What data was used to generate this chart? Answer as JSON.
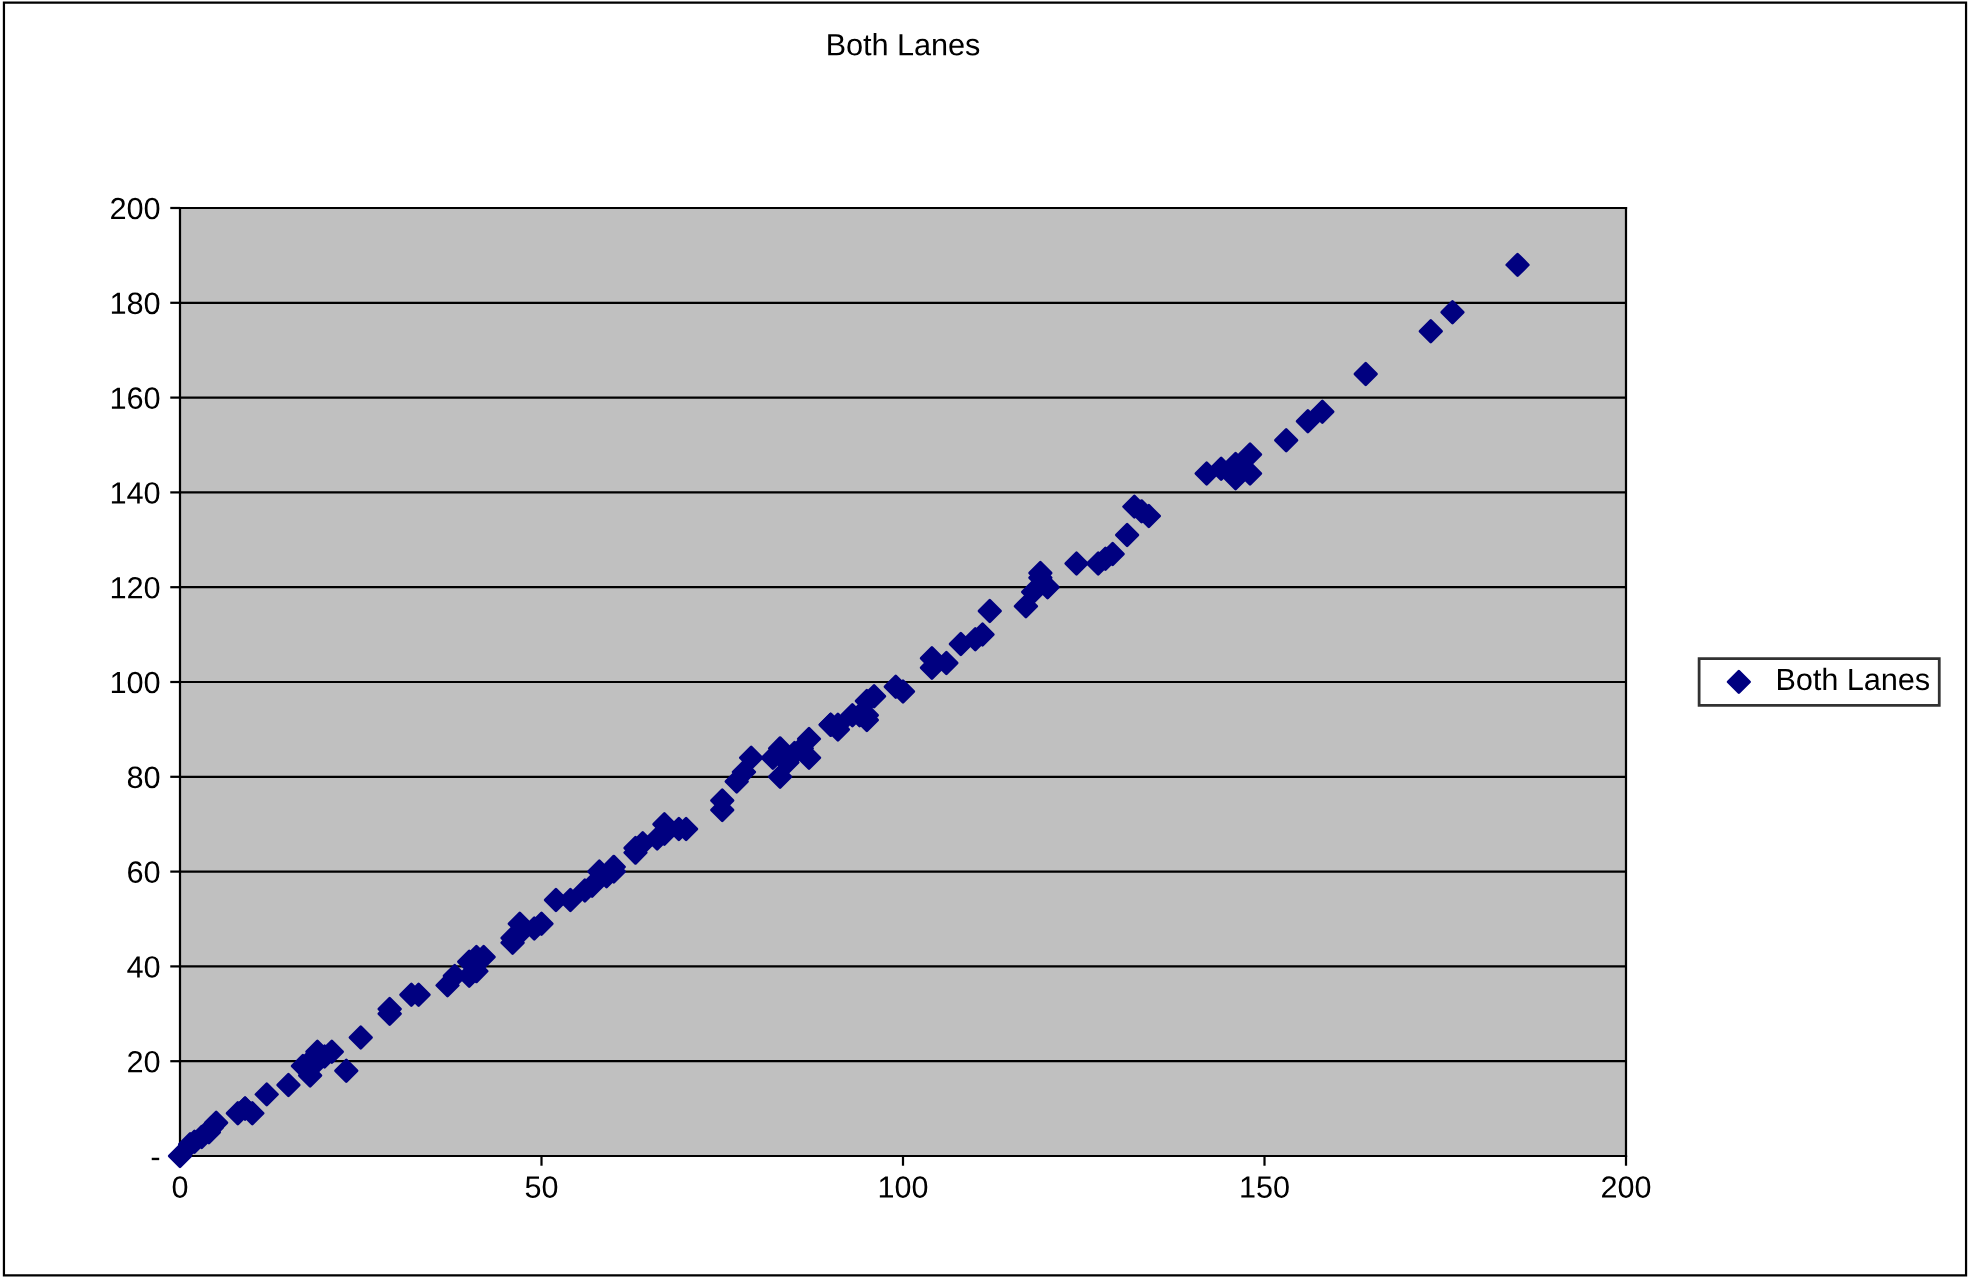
{
  "chart_data": {
    "type": "scatter",
    "title": "Both Lanes",
    "x": [
      0,
      1.4,
      2,
      3,
      4,
      4.4,
      5,
      8,
      9,
      9,
      10,
      12,
      15,
      17,
      18,
      19,
      18,
      19,
      21,
      20,
      23,
      25,
      29,
      29,
      32,
      33,
      37,
      38,
      40,
      41,
      41,
      42,
      40,
      46,
      47,
      46,
      47,
      49,
      50,
      52,
      54,
      56,
      57,
      58,
      60,
      60,
      59,
      63,
      64,
      63,
      66,
      67,
      67,
      69,
      70,
      75,
      75,
      77,
      78,
      79,
      82,
      83,
      83,
      84,
      85,
      86,
      87,
      87,
      90,
      90,
      91,
      91,
      93,
      94,
      95,
      95,
      96,
      95,
      99,
      100,
      104,
      104,
      106,
      108,
      110,
      111,
      112,
      117,
      118,
      119,
      119,
      120,
      124,
      127,
      128,
      129,
      131,
      132,
      134,
      133,
      142,
      144,
      146,
      146,
      148,
      148,
      153,
      156,
      158,
      164,
      173,
      176,
      185
    ],
    "series": [
      {
        "name": "Both Lanes",
        "color": "#000080",
        "values": [
          0,
          2.5,
          3,
          4,
          5,
          6,
          7,
          9,
          10,
          10,
          9,
          13,
          15,
          19,
          20,
          20,
          17,
          22,
          22,
          21,
          18,
          25,
          30,
          31,
          34,
          34,
          36,
          38,
          41,
          39,
          42,
          42,
          38,
          45,
          47,
          46,
          49,
          48,
          49,
          54,
          54,
          56,
          57,
          60,
          61,
          60,
          59,
          65,
          66,
          64,
          67,
          70,
          68,
          69,
          69,
          75,
          73,
          79,
          81,
          84,
          84,
          86,
          80,
          83,
          85,
          86,
          84,
          88,
          91,
          91,
          91,
          90,
          93,
          93,
          93,
          96,
          97,
          92,
          99,
          98,
          105,
          103,
          104,
          108,
          109,
          110,
          115,
          116,
          119,
          122,
          123,
          120,
          125,
          125,
          126,
          127,
          131,
          137,
          135,
          136,
          144,
          145,
          146,
          143,
          144,
          148,
          151,
          155,
          157,
          165,
          174,
          178,
          188
        ]
      }
    ],
    "xlim": [
      0,
      200
    ],
    "xticks": [
      0,
      50,
      100,
      150,
      200
    ],
    "ylim": [
      0,
      200
    ],
    "yticks": [
      {
        "value": 0,
        "label": "-"
      },
      20,
      40,
      60,
      80,
      100,
      120,
      140,
      160,
      180,
      200
    ],
    "grid": "y",
    "legend": "right",
    "marker": "diamond"
  }
}
